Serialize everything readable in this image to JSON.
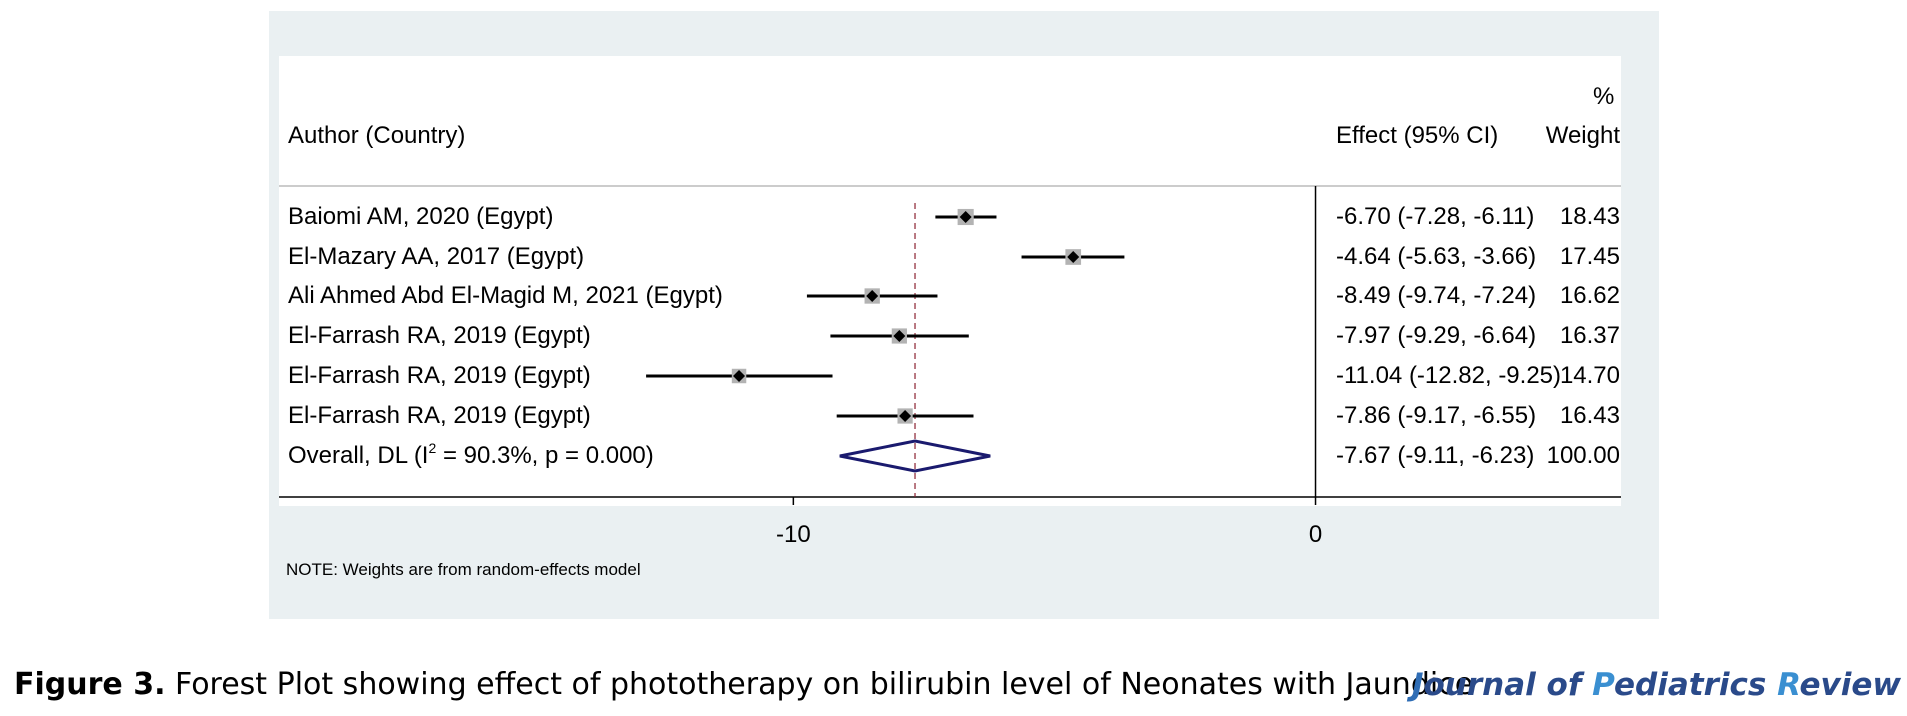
{
  "chart_data": {
    "type": "forest",
    "headers": {
      "study": "Author (Country)",
      "effect": "Effect (95% CI)",
      "weight_top": "%",
      "weight_bottom": "Weight"
    },
    "studies": [
      {
        "label": "Baiomi AM, 2020 (Egypt)",
        "effect": -6.7,
        "lower": -7.28,
        "upper": -6.11,
        "ci_text": "-6.70 (-7.28, -6.11)",
        "weight": 18.43,
        "weight_text": "18.43"
      },
      {
        "label": "El-Mazary AA, 2017 (Egypt)",
        "effect": -4.64,
        "lower": -5.63,
        "upper": -3.66,
        "ci_text": "-4.64 (-5.63, -3.66)",
        "weight": 17.45,
        "weight_text": "17.45"
      },
      {
        "label": "Ali Ahmed Abd El-Magid M, 2021 (Egypt)",
        "effect": -8.49,
        "lower": -9.74,
        "upper": -7.24,
        "ci_text": "-8.49 (-9.74, -7.24)",
        "weight": 16.62,
        "weight_text": "16.62"
      },
      {
        "label": "El-Farrash RA, 2019 (Egypt)",
        "effect": -7.97,
        "lower": -9.29,
        "upper": -6.64,
        "ci_text": "-7.97 (-9.29, -6.64)",
        "weight": 16.37,
        "weight_text": "16.37"
      },
      {
        "label": "El-Farrash RA, 2019 (Egypt)",
        "effect": -11.04,
        "lower": -12.82,
        "upper": -9.25,
        "ci_text": "-11.04 (-12.82, -9.25)",
        "weight": 14.7,
        "weight_text": "14.70"
      },
      {
        "label": "El-Farrash RA, 2019 (Egypt)",
        "effect": -7.86,
        "lower": -9.17,
        "upper": -6.55,
        "ci_text": "-7.86 (-9.17, -6.55)",
        "weight": 16.43,
        "weight_text": "16.43"
      }
    ],
    "overall": {
      "label_prefix": "Overall, DL (I",
      "label_sup": "2",
      "label_suffix": " = 90.3%, p = 0.000)",
      "effect": -7.67,
      "lower": -9.11,
      "upper": -6.23,
      "ci_text": "-7.67 (-9.11, -6.23)",
      "weight_text": "100.00"
    },
    "x_ticks": [
      -10,
      0
    ],
    "x_tick_labels": [
      "-10",
      "0"
    ],
    "xlim": [
      -19.85,
      5.85
    ],
    "null_line": 0,
    "note": "NOTE: Weights are from random-effects model",
    "colors": {
      "ci_line": "#000000",
      "marker_box": "#b3b3b3",
      "overall_diamond": "#1a1a6e",
      "overall_line": "#8b2232",
      "panel_bg": "#eaf0f2"
    }
  },
  "caption": {
    "figure_label": "Figure 3.",
    "text": " Forest Plot showing effect of phototherapy on bilirubin level of Neonates with Jaundice"
  },
  "journal": {
    "parts": [
      {
        "text": "J",
        "color": "#2f6db5"
      },
      {
        "text": "ournal of ",
        "color": "#2a4a8a"
      },
      {
        "text": "P",
        "color": "#3a8fd1"
      },
      {
        "text": "ediatrics ",
        "color": "#2a4a8a"
      },
      {
        "text": "R",
        "color": "#3a8fd1"
      },
      {
        "text": "eview",
        "color": "#2a4a8a"
      }
    ]
  }
}
